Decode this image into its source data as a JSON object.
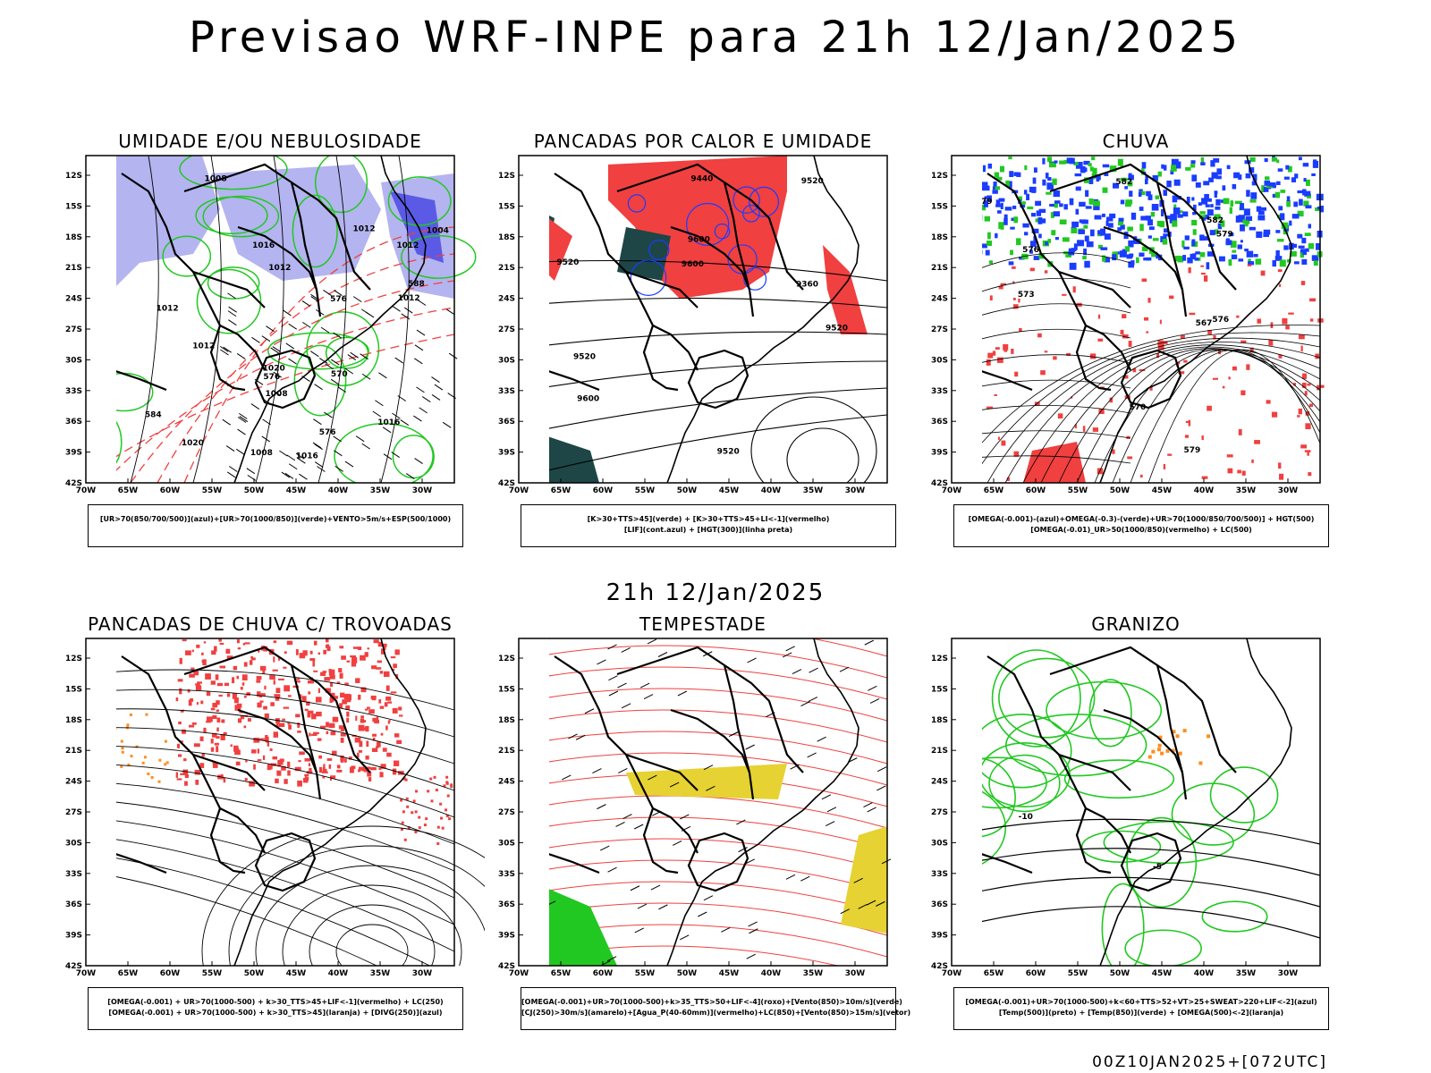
{
  "header": {
    "title": "Previsao WRF-INPE  para 21h 12/Jan/2025"
  },
  "mid_title": "21h 12/Jan/2025",
  "footer": "00Z10JAN2025+[072UTC]",
  "axes": {
    "lat_labels": [
      "12S",
      "15S",
      "18S",
      "21S",
      "24S",
      "27S",
      "30S",
      "33S",
      "36S",
      "39S",
      "42S"
    ],
    "lon_labels": [
      "70W",
      "65W",
      "60W",
      "55W",
      "50W",
      "45W",
      "40W",
      "35W",
      "30W"
    ]
  },
  "colors": {
    "blue": "#1a3cff",
    "green": "#22c822",
    "red": "#f04040",
    "lavender": "#b4b4f0",
    "darkgreen": "#1e4646",
    "yellow": "#e6d232",
    "orange": "#ff8c1e",
    "purple": "#8c28c8"
  },
  "panels": [
    {
      "title": "UMIDADE E/OU NEBULOSIDADE",
      "legend": [
        "[UR>70(850/700/500)](azul)+[UR>70(1000/850)](verde)+VENTO>5m/s+ESP(500/1000)"
      ],
      "annotations": [
        "1012",
        "1008",
        "1012",
        "1012",
        "1008",
        "1004",
        "1016",
        "1012",
        "1008",
        "1016",
        "1016",
        "1020",
        "1020",
        "576",
        "576",
        "576",
        "570",
        "584",
        "588",
        "1012",
        "1012"
      ]
    },
    {
      "title": "PANCADAS POR CALOR E UMIDADE",
      "legend": [
        "[K>30+TTS>45](verde) + [K>30+TTS>45+LI<-1](vermelho)",
        "[LIF](cont.azul) + [HGT(300)](linha preta)"
      ],
      "annotations": [
        "9600",
        "9520",
        "9600",
        "9600",
        "9520",
        "9520",
        "9440",
        "9360",
        "9520",
        "9520"
      ]
    },
    {
      "title": "CHUVA",
      "legend": [
        "[OMEGA(-0.001)-(azul)+OMEGA(-0.3)-(verde)+UR>70(1000/850/700/500)] + HGT(500)",
        "[OMEGA(-0.01)_UR>50(1000/850)(vermelho) + LC(500)"
      ],
      "annotations": [
        "582",
        "582",
        "579",
        "576",
        "576",
        "573",
        "570",
        "567",
        "579",
        "579"
      ]
    },
    {
      "title": "PANCADAS DE CHUVA C/ TROVOADAS",
      "legend": [
        "[OMEGA(-0.001) + UR>70(1000-500) + k>30_TTS>45+LIF<-1](vermelho) + LC(250)",
        "[OMEGA(-0.001) + UR>70(1000-500) + k>30_TTS>45](laranja) + [DIVG(250)](azul)"
      ],
      "annotations": []
    },
    {
      "title": "TEMPESTADE",
      "legend": [
        "[OMEGA(-0.001)+UR>70(1000-500)+k>35_TTS>50+LIF<-4](roxo)+[Vento(850)>10m/s](verde)",
        "[CJ(250)>30m/s](amarelo)+[Agua_P(40-60mm)](vermelho)+LC(850)+[Vento(850)>15m/s](vetor)"
      ],
      "annotations": []
    },
    {
      "title": "GRANIZO",
      "legend": [
        "[OMEGA(-0.001)+UR>70(1000-500)+k<60+TTS>52+VT>25+SWEAT>220+LIF<-2](azul)",
        "[Temp(500)](preto) + [Temp(850)](verde) + [OMEGA(500)<-2](laranja)"
      ],
      "annotations": [
        "-5",
        "-10"
      ]
    }
  ]
}
